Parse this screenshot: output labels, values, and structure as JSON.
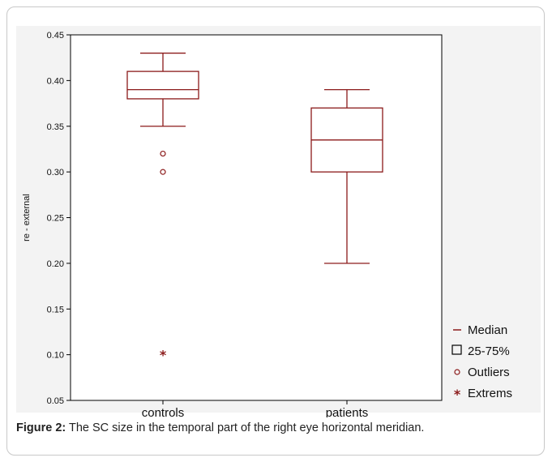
{
  "chart_data": {
    "type": "boxplot",
    "ylabel": "re - external",
    "ylim": [
      0.05,
      0.45
    ],
    "yticks": [
      "0.05",
      "0.10",
      "0.15",
      "0.20",
      "0.25",
      "0.30",
      "0.35",
      "0.40",
      "0.45"
    ],
    "categories": [
      "controls",
      "patients"
    ],
    "boxes": [
      {
        "category": "controls",
        "whisker_low": 0.35,
        "q1": 0.38,
        "median": 0.39,
        "q3": 0.41,
        "whisker_high": 0.43,
        "outliers": [
          0.32,
          0.3
        ],
        "extremes": [
          0.1
        ]
      },
      {
        "category": "patients",
        "whisker_low": 0.2,
        "q1": 0.3,
        "median": 0.335,
        "q3": 0.37,
        "whisker_high": 0.39,
        "outliers": [],
        "extremes": []
      }
    ],
    "legend": {
      "position": "bottom-right",
      "items": [
        {
          "symbol": "—",
          "label": "Median"
        },
        {
          "symbol": "☐",
          "label": "25-75%"
        },
        {
          "symbol": "○",
          "label": "Outliers"
        },
        {
          "symbol": "*",
          "label": "Extrems"
        }
      ]
    },
    "grid": false,
    "colors": {
      "box": "#8b1a1a",
      "axis": "#000000",
      "legend_symbol": "#8b1a1a",
      "legend_box": "#000000"
    }
  },
  "caption": {
    "label": "Figure 2:",
    "text": " The SC size in the temporal part of the right eye horizontal meridian."
  }
}
